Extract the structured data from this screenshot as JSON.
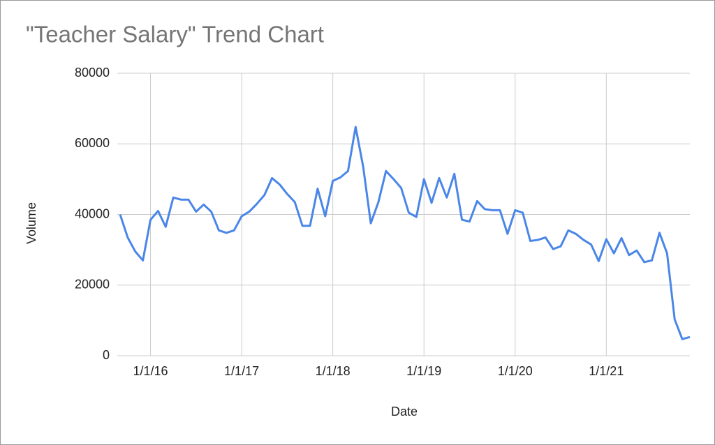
{
  "chart_data": {
    "type": "line",
    "title": "\"Teacher Salary\" Trend Chart",
    "x_label": "Date",
    "y_label": "Volume",
    "x": [
      "9/1/15",
      "10/1/15",
      "11/1/15",
      "12/1/15",
      "1/1/16",
      "2/1/16",
      "3/1/16",
      "4/1/16",
      "5/1/16",
      "6/1/16",
      "7/1/16",
      "8/1/16",
      "9/1/16",
      "10/1/16",
      "11/1/16",
      "12/1/16",
      "1/1/17",
      "2/1/17",
      "3/1/17",
      "4/1/17",
      "5/1/17",
      "6/1/17",
      "7/1/17",
      "8/1/17",
      "9/1/17",
      "10/1/17",
      "11/1/17",
      "12/1/17",
      "1/1/18",
      "2/1/18",
      "3/1/18",
      "4/1/18",
      "5/1/18",
      "6/1/18",
      "7/1/18",
      "8/1/18",
      "9/1/18",
      "10/1/18",
      "11/1/18",
      "12/1/18",
      "1/1/19",
      "2/1/19",
      "3/1/19",
      "4/1/19",
      "5/1/19",
      "6/1/19",
      "7/1/19",
      "8/1/19",
      "9/1/19",
      "10/1/19",
      "11/1/19",
      "12/1/19",
      "1/1/20",
      "2/1/20",
      "3/1/20",
      "4/1/20",
      "5/1/20",
      "6/1/20",
      "7/1/20",
      "8/1/20",
      "9/1/20",
      "10/1/20",
      "11/1/20",
      "12/1/20",
      "1/1/21",
      "2/1/21",
      "3/1/21",
      "4/1/21",
      "5/1/21",
      "6/1/21",
      "7/1/21",
      "8/1/21",
      "9/1/21",
      "10/1/21",
      "11/1/21",
      "12/1/21"
    ],
    "series": [
      {
        "name": "Volume",
        "color": "#4a86e8",
        "values": [
          40000,
          33500,
          29500,
          27000,
          38500,
          41000,
          36500,
          44800,
          44200,
          44200,
          40800,
          42800,
          40800,
          35500,
          34800,
          35500,
          39500,
          40800,
          43000,
          45500,
          50300,
          48500,
          45800,
          43500,
          36800,
          36800,
          47300,
          39500,
          49500,
          50500,
          52300,
          64800,
          53500,
          37500,
          43500,
          52300,
          50000,
          47500,
          40500,
          39300,
          50000,
          43300,
          50300,
          44800,
          51500,
          38500,
          38000,
          43800,
          41500,
          41200,
          41200,
          34500,
          41200,
          40500,
          32500,
          32800,
          33500,
          30200,
          31000,
          35500,
          34500,
          32800,
          31500,
          26800,
          33000,
          29000,
          33300,
          28500,
          29800,
          26500,
          27000,
          34800,
          29000,
          10300,
          4700,
          5300
        ]
      }
    ],
    "xlim": [
      "9/1/15",
      "12/1/21"
    ],
    "xticks": [
      "1/1/16",
      "1/1/17",
      "1/1/18",
      "1/1/19",
      "1/1/20",
      "1/1/21"
    ],
    "ylim": [
      0,
      80000
    ],
    "yticks": [
      0,
      20000,
      40000,
      60000,
      80000
    ],
    "grid": true
  }
}
